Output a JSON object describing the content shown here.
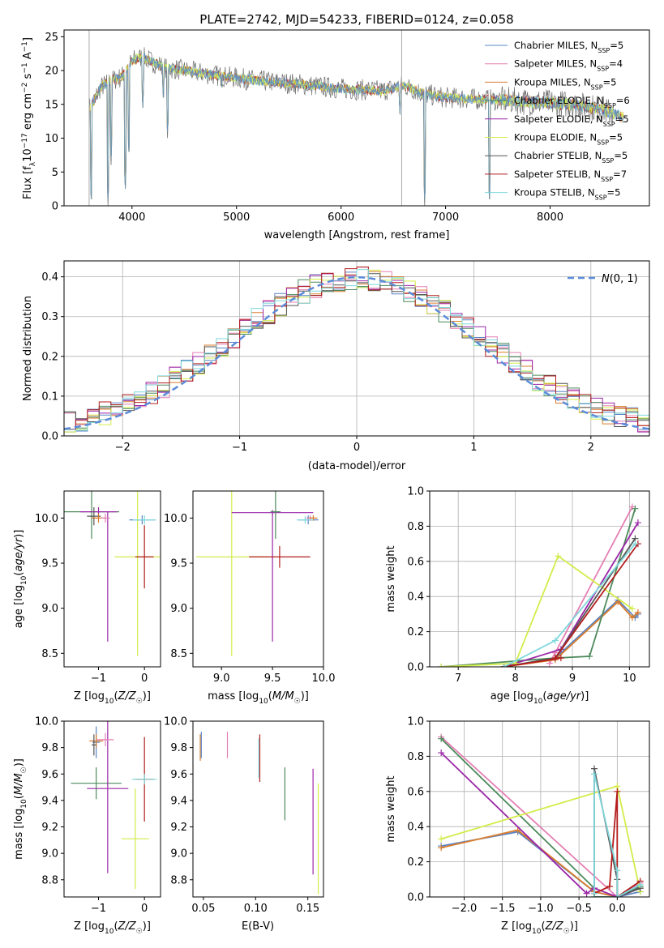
{
  "figure": {
    "title": "PLATE=2742, MJD=54233, FIBERID=0124, z=0.058"
  },
  "colors": {
    "Chabrier MILES": "#5a84c4",
    "Salpeter MILES": "#e57fb4",
    "Kroupa MILES": "#d97d2c",
    "Chabrier ELODIE": "#4d8a5c",
    "Salpeter ELODIE": "#9b27a8",
    "Kroupa ELODIE": "#d4ec4a",
    "Chabrier STELIB": "#555555",
    "Salpeter STELIB": "#b31d1d",
    "Kroupa STELIB": "#7fd8dc",
    "normal": "#5b8bd9"
  },
  "chart_data": [
    {
      "id": "spectrum",
      "type": "line",
      "title": "PLATE=2742, MJD=54233, FIBERID=0124, z=0.058",
      "xlabel": "wavelength [Angstrom, rest frame]",
      "ylabel": "Flux [f_λ 10^-17 erg cm^-2 s^-1 A^-1]",
      "xlim": [
        3350,
        8950
      ],
      "ylim": [
        0,
        26
      ],
      "xticks": [
        4000,
        5000,
        6000,
        7000,
        8000
      ],
      "yticks": [
        0,
        5,
        10,
        15,
        20,
        25
      ],
      "grid": false,
      "legend_position": "top-right",
      "legend": [
        "Chabrier MILES, N_SSP=5",
        "Salpeter MILES, N_SSP=4",
        "Kroupa MILES, N_SSP=5",
        "Chabrier ELODIE, N_SSP=6",
        "Salpeter ELODIE, N_SSP=5",
        "Kroupa ELODIE, N_SSP=5",
        "Chabrier STELIB, N_SSP=5",
        "Salpeter STELIB, N_SSP=7",
        "Kroupa STELIB, N_SSP=5"
      ],
      "continuum_x": [
        3600,
        3700,
        3800,
        3900,
        4000,
        4100,
        4300,
        4500,
        4800,
        5200,
        5600,
        6000,
        6400,
        6600,
        6800,
        7000,
        7400,
        7800,
        8200,
        8500,
        8700
      ],
      "continuum_y": [
        14.5,
        17.5,
        18.5,
        19.0,
        21.5,
        22.0,
        20.5,
        20.0,
        19.3,
        18.5,
        18.0,
        17.3,
        17.0,
        17.8,
        16.5,
        16.0,
        15.7,
        15.4,
        15.0,
        14.3,
        13.0
      ],
      "absorption_x": [
        3610,
        3770,
        3800,
        3935,
        3970,
        4103,
        4300,
        4340,
        4861,
        5175,
        5890,
        6563,
        6800,
        7420
      ],
      "absorption_y": [
        0,
        0,
        6,
        2,
        7,
        14,
        15,
        10,
        17,
        18,
        15.5,
        13,
        0,
        0
      ]
    },
    {
      "id": "residuals",
      "type": "histogram",
      "xlabel": "(data-model)/error",
      "ylabel": "Normed distribution",
      "xlim": [
        -2.5,
        2.5
      ],
      "ylim": [
        0,
        0.44
      ],
      "xticks": [
        -2,
        -1,
        0,
        1,
        2
      ],
      "yticks": [
        0.0,
        0.1,
        0.2,
        0.3,
        0.4
      ],
      "grid": true,
      "legend_position": "top-right",
      "legend": [
        "N(0, 1)"
      ],
      "bins": {
        "start": -2.5,
        "width": 0.1
      },
      "normal": {
        "mean": 0,
        "sigma": 1
      }
    },
    {
      "id": "age-vs-z",
      "type": "scatter",
      "xlabel": "Z [log10(Z/Z☉)]",
      "ylabel": "age [log10(age/yr)]",
      "xlim": [
        -1.75,
        0.35
      ],
      "ylim": [
        8.35,
        10.3
      ],
      "xticks": [
        -1,
        0
      ],
      "yticks": [
        8.5,
        9.0,
        9.5,
        10.0
      ],
      "grid": false,
      "points": [
        {
          "model": "Chabrier ELODIE",
          "x": -1.15,
          "y": 10.07,
          "xerr": 0.6,
          "yerr": 0.3
        },
        {
          "model": "Salpeter ELODIE",
          "x": -1.0,
          "y": 10.07,
          "xerr": 0.4,
          "yerr": 0.05
        },
        {
          "model": "Salpeter ELODIE",
          "x": -0.8,
          "y": 9.35,
          "xerr": 0.0,
          "yerr": 0.72
        },
        {
          "model": "Kroupa ELODIE",
          "x": -0.15,
          "y": 9.57,
          "xerr": 0.5,
          "yerr": 1.1
        },
        {
          "model": "Salpeter STELIB",
          "x": 0.0,
          "y": 9.57,
          "xerr": 0.2,
          "yerr": 0.35
        },
        {
          "model": "Chabrier STELIB",
          "x": -1.1,
          "y": 10.02,
          "xerr": 0.15,
          "yerr": 0.1
        },
        {
          "model": "Kroupa MILES",
          "x": -1.0,
          "y": 10.0,
          "xerr": 0.15,
          "yerr": 0.05
        },
        {
          "model": "Salpeter MILES",
          "x": -0.85,
          "y": 10.0,
          "xerr": 0.1,
          "yerr": 0.05
        },
        {
          "model": "Chabrier MILES",
          "x": -0.05,
          "y": 9.98,
          "xerr": 0.28,
          "yerr": 0.05
        },
        {
          "model": "Kroupa STELIB",
          "x": 0.0,
          "y": 9.98,
          "xerr": 0.25,
          "yerr": 0.05
        }
      ]
    },
    {
      "id": "age-vs-mass",
      "type": "scatter",
      "xlabel": "mass [log10(M/M☉)]",
      "ylabel": "",
      "xlim": [
        8.72,
        10.0
      ],
      "ylim": [
        8.35,
        10.3
      ],
      "xticks": [
        9.0,
        9.5,
        10.0
      ],
      "yticks": [
        8.5,
        9.0,
        9.5,
        10.0
      ],
      "grid": false,
      "points": [
        {
          "model": "Kroupa ELODIE",
          "x": 9.1,
          "y": 9.57,
          "xerr": 0.35,
          "yerr": 1.1
        },
        {
          "model": "Salpeter ELODIE",
          "x": 9.5,
          "y": 9.35,
          "xerr": 0.0,
          "yerr": 0.72
        },
        {
          "model": "Salpeter ELODIE",
          "x": 9.5,
          "y": 10.06,
          "xerr": 0.4,
          "yerr": 0.03
        },
        {
          "model": "Salpeter STELIB",
          "x": 9.57,
          "y": 9.57,
          "xerr": 0.3,
          "yerr": 0.12
        },
        {
          "model": "Chabrier ELODIE",
          "x": 9.53,
          "y": 10.07,
          "xerr": 0.05,
          "yerr": 0.3
        },
        {
          "model": "Chabrier MILES",
          "x": 9.85,
          "y": 9.98,
          "xerr": 0.1,
          "yerr": 0.05
        },
        {
          "model": "Salpeter MILES",
          "x": 9.87,
          "y": 10.0,
          "xerr": 0.04,
          "yerr": 0.03
        },
        {
          "model": "Kroupa MILES",
          "x": 9.9,
          "y": 10.0,
          "xerr": 0.04,
          "yerr": 0.03
        },
        {
          "model": "Kroupa STELIB",
          "x": 9.82,
          "y": 9.98,
          "xerr": 0.08,
          "yerr": 0.04
        }
      ]
    },
    {
      "id": "weight-vs-age",
      "type": "line",
      "xlabel": "age [log10(age/yr)]",
      "ylabel": "mass weight",
      "xlim": [
        6.5,
        10.35
      ],
      "ylim": [
        0,
        1.0
      ],
      "xticks": [
        7,
        8,
        9,
        10
      ],
      "yticks": [
        0.0,
        0.2,
        0.4,
        0.6,
        0.8,
        1.0
      ],
      "grid": true,
      "series": [
        {
          "name": "Chabrier MILES",
          "x": [
            7.8,
            8.7,
            9.8,
            10.1,
            10.15
          ],
          "y": [
            0.0,
            0.05,
            0.38,
            0.28,
            0.3
          ]
        },
        {
          "name": "Salpeter MILES",
          "x": [
            8.6,
            8.7,
            10.05
          ],
          "y": [
            0.02,
            0.08,
            0.91
          ]
        },
        {
          "name": "Kroupa MILES",
          "x": [
            7.8,
            8.7,
            9.8,
            10.05,
            10.15
          ],
          "y": [
            0.0,
            0.04,
            0.37,
            0.28,
            0.31
          ]
        },
        {
          "name": "Chabrier ELODIE",
          "x": [
            6.7,
            8.7,
            9.3,
            10.1
          ],
          "y": [
            0.0,
            0.05,
            0.06,
            0.9
          ]
        },
        {
          "name": "Salpeter ELODIE",
          "x": [
            7.8,
            8.8,
            10.15
          ],
          "y": [
            0.0,
            0.1,
            0.82
          ]
        },
        {
          "name": "Kroupa ELODIE",
          "x": [
            6.7,
            8.0,
            8.75,
            10.05
          ],
          "y": [
            0.0,
            0.02,
            0.63,
            0.33
          ]
        },
        {
          "name": "Chabrier STELIB",
          "x": [
            7.8,
            8.7,
            10.1
          ],
          "y": [
            0.0,
            0.05,
            0.73
          ]
        },
        {
          "name": "Salpeter STELIB",
          "x": [
            7.8,
            8.8,
            8.7,
            10.15
          ],
          "y": [
            0.0,
            0.05,
            0.05,
            0.7
          ]
        },
        {
          "name": "Kroupa STELIB",
          "x": [
            7.8,
            8.7,
            10.1
          ],
          "y": [
            0.0,
            0.15,
            0.7
          ]
        }
      ]
    },
    {
      "id": "mass-vs-z",
      "type": "scatter",
      "xlabel": "Z [log10(Z/Z☉)]",
      "ylabel": "mass [log10(M/M☉)]",
      "xlim": [
        -1.75,
        0.35
      ],
      "ylim": [
        8.67,
        10.0
      ],
      "xticks": [
        -1,
        0
      ],
      "yticks": [
        8.8,
        9.0,
        9.2,
        9.4,
        9.6,
        9.8,
        10.0
      ],
      "grid": false,
      "points": [
        {
          "model": "Chabrier ELODIE",
          "x": -1.05,
          "y": 9.53,
          "xerr": 0.55,
          "yerr": 0.12
        },
        {
          "model": "Salpeter ELODIE",
          "x": -0.8,
          "y": 9.49,
          "xerr": 0.45,
          "yerr": 0.0
        },
        {
          "model": "Salpeter ELODIE",
          "x": -0.8,
          "y": 9.5,
          "xerr": 0.0,
          "yerr": 0.65
        },
        {
          "model": "Kroupa ELODIE",
          "x": -0.2,
          "y": 9.11,
          "xerr": 0.3,
          "yerr": 0.38
        },
        {
          "model": "Chabrier MILES",
          "x": -1.05,
          "y": 9.84,
          "xerr": 0.08,
          "yerr": 0.12
        },
        {
          "model": "Salpeter MILES",
          "x": -0.85,
          "y": 9.86,
          "xerr": 0.18,
          "yerr": 0.05
        },
        {
          "model": "Kroupa MILES",
          "x": -1.05,
          "y": 9.85,
          "xerr": 0.15,
          "yerr": 0.05
        },
        {
          "model": "Chabrier STELIB",
          "x": -1.1,
          "y": 9.82,
          "xerr": 0.05,
          "yerr": 0.08
        },
        {
          "model": "Salpeter STELIB",
          "x": 0.0,
          "y": 9.56,
          "xerr": 0.2,
          "yerr": 0.32
        },
        {
          "model": "Kroupa STELIB",
          "x": 0.0,
          "y": 9.56,
          "xerr": 0.27,
          "yerr": 0.04
        }
      ]
    },
    {
      "id": "mass-vs-ebv",
      "type": "scatter",
      "xlabel": "E(B-V)",
      "ylabel": "",
      "xlim": [
        0.04,
        0.165
      ],
      "ylim": [
        8.67,
        10.0
      ],
      "xticks": [
        0.05,
        0.1,
        0.15
      ],
      "yticks": [
        8.8,
        9.0,
        9.2,
        9.4,
        9.6,
        9.8,
        10.0
      ],
      "grid": false,
      "points": [
        {
          "model": "Kroupa MILES",
          "x": 0.047,
          "y": 9.8,
          "xerr": 0,
          "yerr": 0.1
        },
        {
          "model": "Chabrier MILES",
          "x": 0.048,
          "y": 9.82,
          "xerr": 0,
          "yerr": 0.1
        },
        {
          "model": "Salpeter MILES",
          "x": 0.073,
          "y": 9.82,
          "xerr": 0,
          "yerr": 0.1
        },
        {
          "model": "Salpeter STELIB",
          "x": 0.104,
          "y": 9.72,
          "xerr": 0,
          "yerr": 0.18
        },
        {
          "model": "Kroupa STELIB",
          "x": 0.103,
          "y": 9.72,
          "xerr": 0,
          "yerr": 0.15
        },
        {
          "model": "Chabrier ELODIE",
          "x": 0.128,
          "y": 9.45,
          "xerr": 0,
          "yerr": 0.2
        },
        {
          "model": "Salpeter ELODIE",
          "x": 0.155,
          "y": 9.24,
          "xerr": 0,
          "yerr": 0.4
        },
        {
          "model": "Kroupa ELODIE",
          "x": 0.16,
          "y": 9.11,
          "xerr": 0,
          "yerr": 0.42
        }
      ]
    },
    {
      "id": "weight-vs-z",
      "type": "line",
      "xlabel": "Z [log10(Z/Z☉)]",
      "ylabel": "mass weight",
      "xlim": [
        -2.45,
        0.42
      ],
      "ylim": [
        0,
        1.0
      ],
      "xticks": [
        -2.0,
        -1.5,
        -1.0,
        -0.5,
        0.0
      ],
      "yticks": [
        0.0,
        0.2,
        0.4,
        0.6,
        0.8,
        1.0
      ],
      "grid": true,
      "series": [
        {
          "name": "Chabrier MILES",
          "x": [
            -2.3,
            -1.3,
            -0.3,
            0.0,
            0.3
          ],
          "y": [
            0.29,
            0.37,
            0.03,
            0.0,
            0.03
          ]
        },
        {
          "name": "Salpeter MILES",
          "x": [
            -2.3,
            0.0,
            0.3
          ],
          "y": [
            0.91,
            0.0,
            0.08
          ]
        },
        {
          "name": "Kroupa MILES",
          "x": [
            -2.3,
            -1.3,
            -0.3,
            0.0,
            0.3
          ],
          "y": [
            0.28,
            0.38,
            0.03,
            0.0,
            0.05
          ]
        },
        {
          "name": "Chabrier ELODIE",
          "x": [
            -2.3,
            -0.3,
            -0.3,
            0.0,
            0.3
          ],
          "y": [
            0.9,
            0.05,
            0.0,
            0.0,
            0.06
          ]
        },
        {
          "name": "Salpeter ELODIE",
          "x": [
            -2.3,
            -0.4,
            -0.3,
            0.0,
            0.3
          ],
          "y": [
            0.82,
            0.02,
            0.05,
            0.0,
            0.05
          ]
        },
        {
          "name": "Kroupa ELODIE",
          "x": [
            -2.3,
            0.0,
            0.3
          ],
          "y": [
            0.33,
            0.63,
            0.03
          ]
        },
        {
          "name": "Chabrier STELIB",
          "x": [
            -0.3,
            -0.3,
            0.0,
            0.0,
            0.3
          ],
          "y": [
            0.02,
            0.73,
            0.1,
            0.0,
            0.05
          ]
        },
        {
          "name": "Salpeter STELIB",
          "x": [
            -0.3,
            -0.1,
            0.0,
            0.0,
            0.3
          ],
          "y": [
            0.02,
            0.06,
            0.6,
            0.0,
            0.09
          ]
        },
        {
          "name": "Kroupa STELIB",
          "x": [
            -0.3,
            -0.3,
            0.0,
            0.0,
            0.3
          ],
          "y": [
            0.02,
            0.7,
            0.15,
            0.0,
            0.07
          ]
        }
      ]
    }
  ]
}
